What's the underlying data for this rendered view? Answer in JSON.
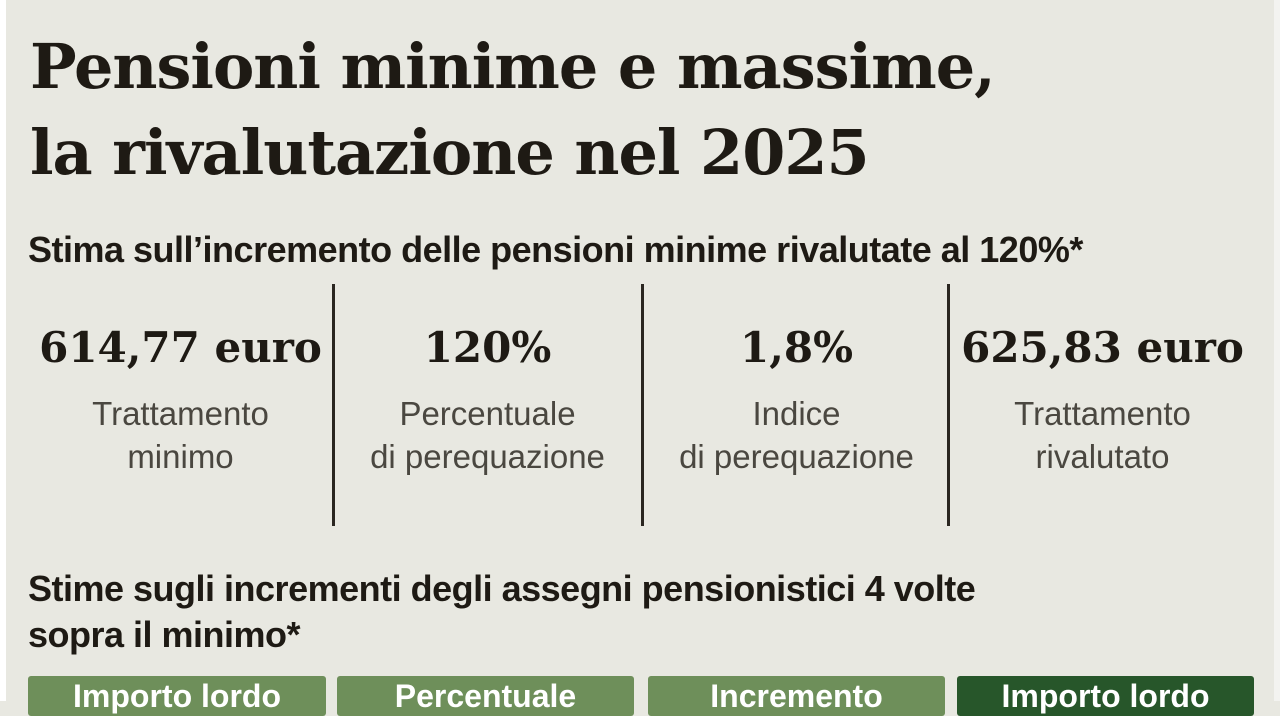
{
  "title": {
    "line1": "Pensioni minime e massime,",
    "line2": "la rivalutazione nel 2025"
  },
  "section1": {
    "heading": "Stima sull’incremento delle pensioni minime rivalutate al 120%*",
    "stats": [
      {
        "value": "614,77 euro",
        "label_line1": "Trattamento",
        "label_line2": "minimo"
      },
      {
        "value": "120%",
        "label_line1": "Percentuale",
        "label_line2": "di perequazione"
      },
      {
        "value": "1,8%",
        "label_line1": "Indice",
        "label_line2": "di perequazione"
      },
      {
        "value": "625,83 euro",
        "label_line1": "Trattamento",
        "label_line2": "rivalutato"
      }
    ]
  },
  "section2": {
    "heading_line1": "Stime sugli incrementi degli assegni pensionistici 4 volte",
    "heading_line2": "sopra il minimo*",
    "columns": [
      {
        "label": "Importo lordo",
        "color": "#6e8f5a"
      },
      {
        "label": "Percentuale",
        "color": "#6e8f5a"
      },
      {
        "label": "Incremento",
        "color": "#6e8f5a"
      },
      {
        "label": "Importo lordo",
        "color": "#27562a"
      }
    ]
  }
}
